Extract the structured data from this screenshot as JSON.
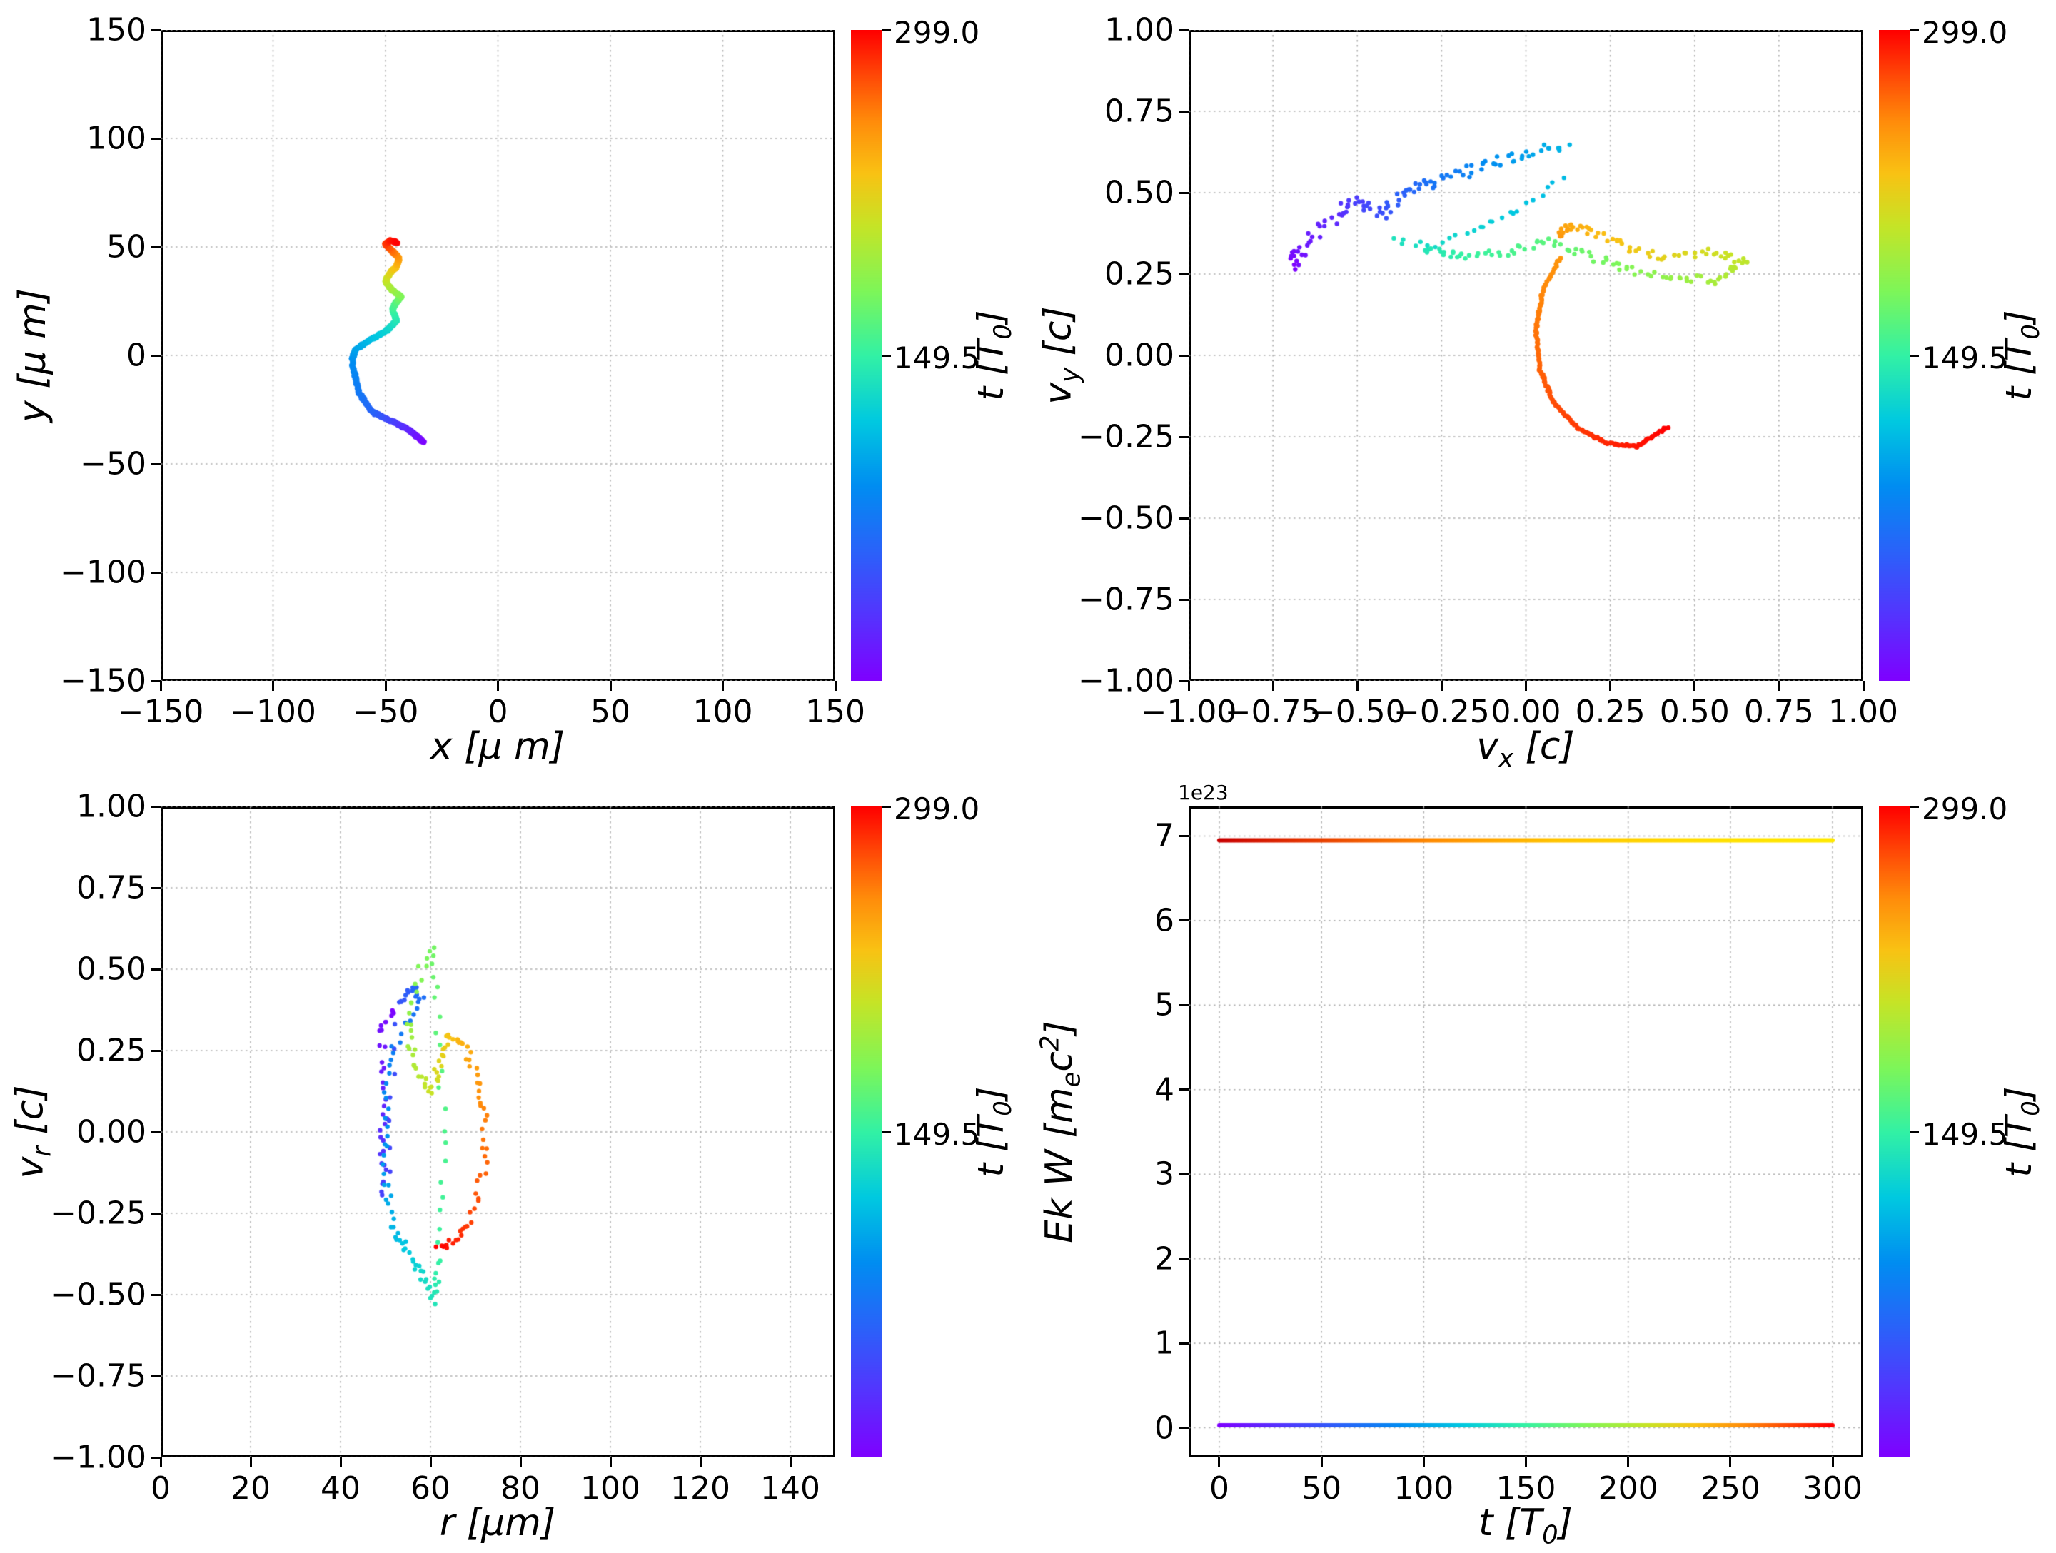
{
  "figure": {
    "background": "#ffffff",
    "grid_color": "#b0b0b0",
    "spine_color": "#000000"
  },
  "colorbar": {
    "max_label": "299.0",
    "mid_label": "149.5",
    "label": "t [T_{0}]",
    "vmin": 0,
    "vmax": 299
  },
  "rainbow_stops": [
    [
      0.0,
      "#7f00ff"
    ],
    [
      0.1,
      "#5533fe"
    ],
    [
      0.2,
      "#2a62f9"
    ],
    [
      0.3,
      "#008df1"
    ],
    [
      0.4,
      "#00c9e0"
    ],
    [
      0.5,
      "#32f1a5"
    ],
    [
      0.6,
      "#7ef658"
    ],
    [
      0.7,
      "#c6e426"
    ],
    [
      0.78,
      "#f9c213"
    ],
    [
      0.86,
      "#ff8c0a"
    ],
    [
      0.93,
      "#ff4906"
    ],
    [
      1.0,
      "#ff0000"
    ]
  ],
  "chart_data": [
    {
      "type": "scatter",
      "xlabel": "x  [μ m]",
      "ylabel": "y  [μ m]",
      "xlim": [
        -150,
        150
      ],
      "ylim": [
        -150,
        150
      ],
      "xticks": [
        -150,
        -100,
        -50,
        0,
        50,
        100,
        150
      ],
      "yticks": [
        -150,
        -100,
        -50,
        0,
        50,
        100,
        150
      ],
      "xtick_decimals": 0,
      "ytick_decimals": 0,
      "grid": true,
      "series": [
        {
          "name": "xy-trajectory",
          "color_mode": "time",
          "radius": 4.2,
          "samples": 560,
          "jitter": [
            0.4,
            0.4
          ],
          "t": [
            0,
            20,
            40,
            60,
            75,
            90,
            100,
            112,
            125,
            140,
            152,
            165,
            178,
            190,
            205,
            220,
            235,
            250,
            265,
            280,
            290,
            299
          ],
          "x": [
            -33,
            -40,
            -48,
            -56,
            -62,
            -65,
            -63,
            -57,
            -50,
            -45,
            -47,
            -45,
            -43,
            -47,
            -50,
            -48,
            -45,
            -44,
            -47,
            -50,
            -48,
            -45
          ],
          "y": [
            -40,
            -34,
            -30,
            -26,
            -17,
            -2,
            3,
            7,
            11,
            16,
            21,
            25,
            27,
            30,
            34,
            38,
            41,
            45,
            48,
            51,
            53,
            52
          ]
        }
      ]
    },
    {
      "type": "scatter",
      "xlabel": "v_{x} [c]",
      "ylabel": "v_{y} [c]",
      "xlim": [
        -1,
        1
      ],
      "ylim": [
        -1,
        1
      ],
      "xticks": [
        -1,
        -0.75,
        -0.5,
        -0.25,
        0,
        0.25,
        0.5,
        0.75,
        1
      ],
      "yticks": [
        -1,
        -0.75,
        -0.5,
        -0.25,
        0,
        0.25,
        0.5,
        0.75,
        1
      ],
      "xtick_decimals": 2,
      "ytick_decimals": 2,
      "grid": true,
      "series": [
        {
          "name": "early-blue",
          "color_mode": "time",
          "radius": 3.2,
          "samples": 110,
          "jitter": [
            0.02,
            0.018
          ],
          "t": [
            0,
            12,
            24,
            36,
            48,
            60,
            72,
            84,
            96,
            110
          ],
          "x": [
            -0.7,
            -0.66,
            -0.58,
            -0.5,
            -0.44,
            -0.36,
            -0.28,
            -0.16,
            -0.04,
            0.12
          ],
          "y": [
            0.27,
            0.33,
            0.42,
            0.48,
            0.43,
            0.5,
            0.53,
            0.57,
            0.61,
            0.64
          ]
        },
        {
          "name": "blue-cyan-streak",
          "color_mode": "time",
          "radius": 3.2,
          "samples": 26,
          "jitter": [
            0.015,
            0.012
          ],
          "t": [
            112,
            118,
            126,
            132,
            138
          ],
          "x": [
            0.1,
            -0.02,
            -0.15,
            -0.28,
            -0.4
          ],
          "y": [
            0.55,
            0.45,
            0.38,
            0.34,
            0.35
          ]
        },
        {
          "name": "mid-green",
          "color_mode": "time",
          "radius": 3.2,
          "samples": 150,
          "jitter": [
            0.012,
            0.012
          ],
          "t": [
            140,
            150,
            158,
            166,
            174,
            182,
            190,
            198,
            206,
            214,
            222,
            230,
            238,
            246,
            252
          ],
          "x": [
            -0.3,
            -0.18,
            -0.05,
            0.08,
            0.2,
            0.32,
            0.45,
            0.58,
            0.65,
            0.55,
            0.42,
            0.3,
            0.2,
            0.12,
            0.1
          ],
          "y": [
            0.33,
            0.3,
            0.32,
            0.35,
            0.3,
            0.26,
            0.24,
            0.23,
            0.29,
            0.32,
            0.3,
            0.33,
            0.38,
            0.4,
            0.36
          ]
        },
        {
          "name": "late-red-arc",
          "color_mode": "time",
          "radius": 3.4,
          "samples": 150,
          "jitter": [
            0.003,
            0.003
          ],
          "t": [
            253,
            258,
            264,
            270,
            276,
            282,
            288,
            293,
            299
          ],
          "x": [
            0.1,
            0.05,
            0.03,
            0.04,
            0.08,
            0.15,
            0.24,
            0.33,
            0.42
          ],
          "y": [
            0.3,
            0.2,
            0.08,
            -0.04,
            -0.14,
            -0.22,
            -0.27,
            -0.28,
            -0.22
          ]
        }
      ]
    },
    {
      "type": "scatter",
      "xlabel": "r [μm]",
      "ylabel": "v_{r} [c]",
      "xlim": [
        0,
        150
      ],
      "ylim": [
        -1,
        1
      ],
      "xticks": [
        0,
        20,
        40,
        60,
        80,
        100,
        120,
        140
      ],
      "yticks": [
        -1,
        -0.75,
        -0.5,
        -0.25,
        0,
        0.25,
        0.5,
        0.75,
        1
      ],
      "xtick_decimals": 0,
      "ytick_decimals": 2,
      "grid": true,
      "series": [
        {
          "name": "r-vr-loop",
          "color_mode": "time",
          "radius": 3.2,
          "samples": 240,
          "jitter": [
            0.8,
            0.012
          ],
          "t": [
            0,
            10,
            20,
            30,
            40,
            50,
            60,
            70,
            80,
            90,
            100,
            110,
            120,
            130,
            140,
            150,
            155,
            160,
            165,
            170,
            175,
            180,
            190,
            200,
            210,
            220,
            230,
            240,
            250,
            260,
            270,
            280,
            290,
            299
          ],
          "x": [
            52,
            49,
            50,
            49,
            50,
            53,
            56,
            58,
            51,
            50,
            50,
            52,
            55,
            58,
            61,
            62,
            63,
            63,
            62,
            61,
            61,
            58,
            55,
            57,
            60,
            62,
            64,
            67,
            70,
            72,
            72,
            69,
            65,
            62
          ],
          "y": [
            0.38,
            0.3,
            0.1,
            -0.05,
            -0.2,
            0.4,
            0.44,
            0.4,
            0.25,
            0.05,
            -0.15,
            -0.3,
            -0.37,
            -0.43,
            -0.52,
            -0.4,
            -0.2,
            0.0,
            0.25,
            0.45,
            0.57,
            0.5,
            0.32,
            0.2,
            0.12,
            0.2,
            0.3,
            0.28,
            0.18,
            0.05,
            -0.12,
            -0.27,
            -0.34,
            -0.35
          ]
        }
      ]
    },
    {
      "type": "scatter",
      "xlabel": "t [T_{0}]",
      "ylabel": "Ek W [m_{e}c^{2}]",
      "offset_text": "1e23",
      "xlim": [
        -15,
        315
      ],
      "ylim": [
        -0.35,
        7.35
      ],
      "xticks": [
        0,
        50,
        100,
        150,
        200,
        250,
        300
      ],
      "yticks": [
        0,
        1,
        2,
        3,
        4,
        5,
        6,
        7
      ],
      "xtick_decimals": 0,
      "ytick_decimals": 0,
      "grid": true,
      "series": [
        {
          "name": "ek-constant-line",
          "color_mode": "gradient",
          "radius": 3,
          "samples": 460,
          "jitter": [
            0,
            0
          ],
          "color_stops": [
            [
              0,
              "#c80000"
            ],
            [
              0.15,
              "#e63900"
            ],
            [
              0.35,
              "#ff8c00"
            ],
            [
              0.55,
              "#ffc400"
            ],
            [
              0.8,
              "#ffdf00"
            ],
            [
              1,
              "#ffe900"
            ]
          ],
          "t": [
            0,
            300
          ],
          "x": [
            0,
            300
          ],
          "y": [
            6.95,
            6.95
          ]
        },
        {
          "name": "w-zero-line",
          "color_mode": "time",
          "radius": 3,
          "samples": 460,
          "jitter": [
            0,
            0
          ],
          "t": [
            0,
            300
          ],
          "x": [
            0,
            300
          ],
          "y": [
            0.03,
            0.03
          ]
        }
      ]
    }
  ]
}
